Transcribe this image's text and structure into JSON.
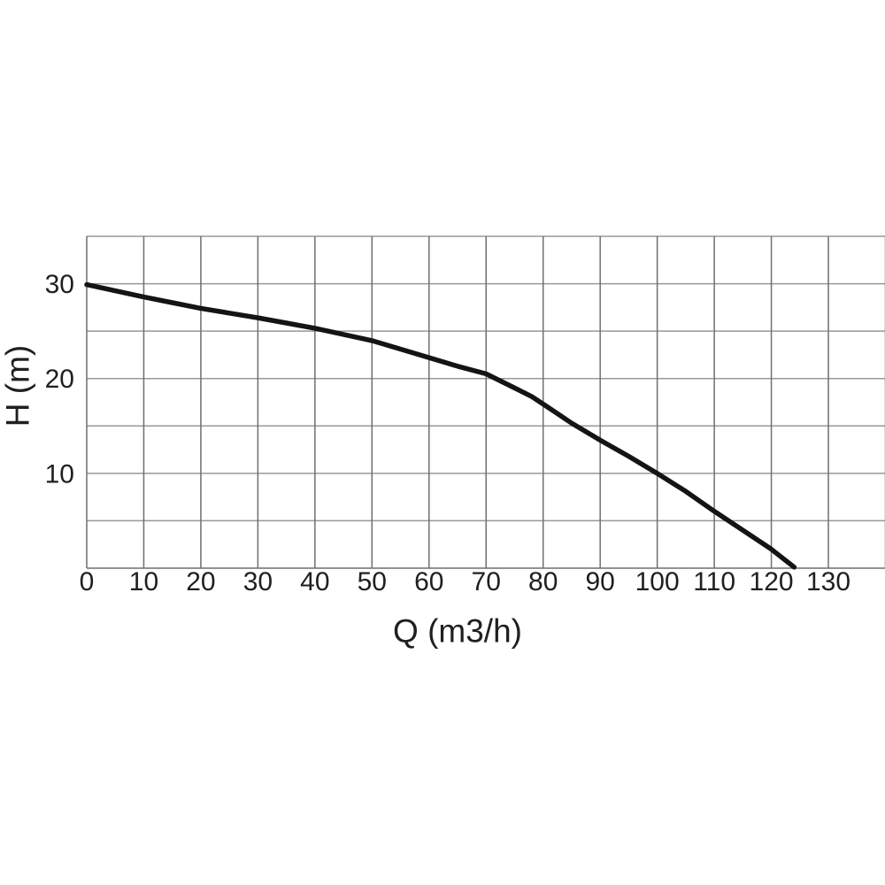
{
  "chart_data": {
    "type": "line",
    "title": "",
    "xlabel": "Q (m3/h)",
    "ylabel": "H (m)",
    "xlim": [
      0,
      140
    ],
    "ylim": [
      0,
      35
    ],
    "x_ticks": [
      0,
      10,
      20,
      30,
      40,
      50,
      60,
      70,
      80,
      90,
      100,
      110,
      120,
      130
    ],
    "y_ticks": [
      10,
      20,
      30
    ],
    "grid": {
      "on": true,
      "x_step": 10,
      "y_step": 5
    },
    "legend": "none",
    "points": [
      [
        0,
        29.9
      ],
      [
        5,
        29.25
      ],
      [
        10,
        28.6
      ],
      [
        15,
        28.0
      ],
      [
        20,
        27.4
      ],
      [
        25,
        26.9
      ],
      [
        30,
        26.4
      ],
      [
        35,
        25.85
      ],
      [
        40,
        25.3
      ],
      [
        45,
        24.65
      ],
      [
        50,
        24.0
      ],
      [
        55,
        23.1
      ],
      [
        60,
        22.2
      ],
      [
        65,
        21.3
      ],
      [
        70,
        20.5
      ],
      [
        75,
        19.0
      ],
      [
        78,
        18.1
      ],
      [
        80,
        17.3
      ],
      [
        85,
        15.3
      ],
      [
        90,
        13.5
      ],
      [
        95,
        11.8
      ],
      [
        100,
        10.0
      ],
      [
        105,
        8.1
      ],
      [
        110,
        6.0
      ],
      [
        115,
        4.0
      ],
      [
        120,
        2.0
      ],
      [
        124,
        0.1
      ]
    ],
    "colors": {
      "curve": "#141414",
      "grid_vertical": "#6f6f6f",
      "grid_horizontal": "#989898",
      "axis": "#6f6f6f",
      "text": "#1f1f1f",
      "background": "#ffffff"
    }
  }
}
